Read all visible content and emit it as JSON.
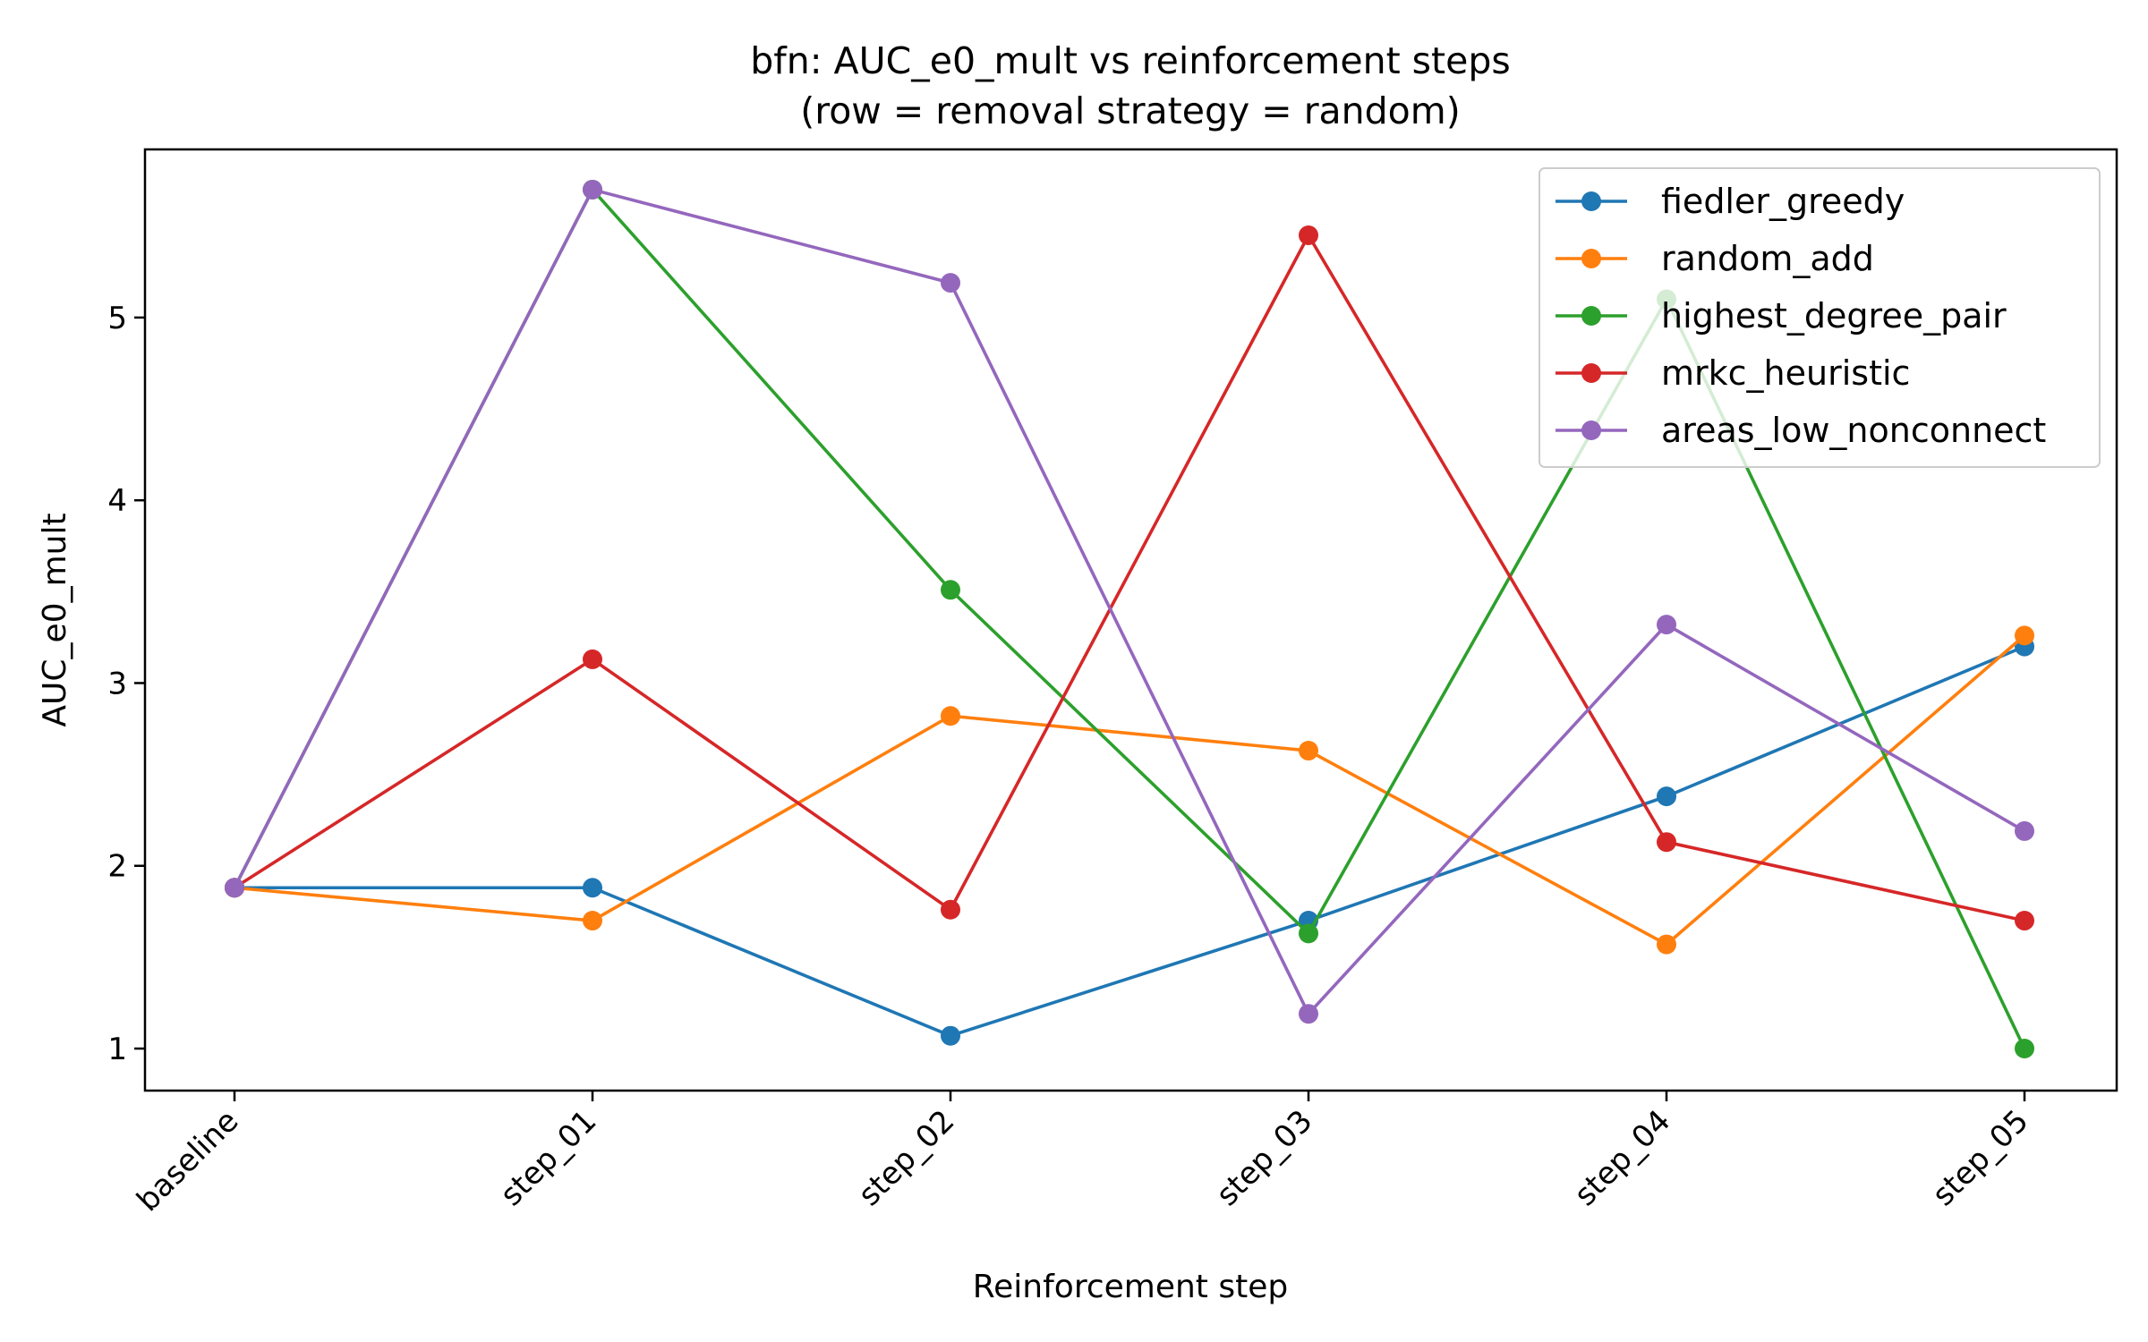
{
  "chart_data": {
    "type": "line",
    "title_line1": "bfn: AUC_e0_mult vs reinforcement steps",
    "title_line2": "(row = removal strategy = random)",
    "xlabel": "Reinforcement step",
    "ylabel": "AUC_e0_mult",
    "categories": [
      "baseline",
      "step_01",
      "step_02",
      "step_03",
      "step_04",
      "step_05"
    ],
    "ylim": [
      0.77,
      5.92
    ],
    "yticks": [
      1,
      2,
      3,
      4,
      5
    ],
    "grid": false,
    "legend_position": "upper right",
    "series": [
      {
        "name": "fiedler_greedy",
        "color": "#1f77b4",
        "values": [
          1.88,
          1.88,
          1.07,
          1.7,
          2.38,
          3.2
        ]
      },
      {
        "name": "random_add",
        "color": "#ff7f0e",
        "values": [
          1.88,
          1.7,
          2.82,
          2.63,
          1.57,
          3.26
        ]
      },
      {
        "name": "highest_degree_pair",
        "color": "#2ca02c",
        "values": [
          1.88,
          5.7,
          3.51,
          1.63,
          5.1,
          1.0
        ]
      },
      {
        "name": "mrkc_heuristic",
        "color": "#d62728",
        "values": [
          1.88,
          3.13,
          1.76,
          5.45,
          2.13,
          1.7
        ]
      },
      {
        "name": "areas_low_nonconnect",
        "color": "#9467bd",
        "values": [
          1.88,
          5.7,
          5.19,
          1.19,
          3.32,
          2.19
        ]
      }
    ]
  }
}
